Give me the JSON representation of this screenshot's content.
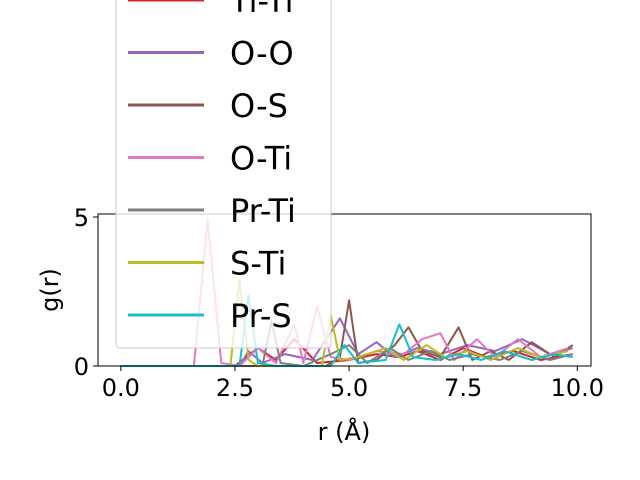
{
  "chart_data": {
    "type": "line",
    "xlabel": "r (Å)",
    "ylabel": "g(r)",
    "xlim": [
      -0.5,
      10.3
    ],
    "ylim": [
      0,
      5.1
    ],
    "x_ticks": [
      "0.0",
      "2.5",
      "5.0",
      "7.5",
      "10.0"
    ],
    "x_tick_values": [
      0,
      2.5,
      5,
      7.5,
      10
    ],
    "y_ticks": [
      "0",
      "5"
    ],
    "y_tick_values": [
      0,
      5
    ],
    "grid": false,
    "legend_placement": "upper-left (overflowing top edge)",
    "series": [
      {
        "name": "Ti-Ti",
        "color": "#d62728",
        "points": [
          [
            0,
            0
          ],
          [
            2.5,
            0
          ],
          [
            3.0,
            0.6
          ],
          [
            3.4,
            0.2
          ],
          [
            3.8,
            0.9
          ],
          [
            4.3,
            0.1
          ],
          [
            5.0,
            0.2
          ],
          [
            5.6,
            0.4
          ],
          [
            6.1,
            0.3
          ],
          [
            6.5,
            0.5
          ],
          [
            7.0,
            0.2
          ],
          [
            7.5,
            0.6
          ],
          [
            8.0,
            0.3
          ],
          [
            8.6,
            0.5
          ],
          [
            9.2,
            0.2
          ],
          [
            9.9,
            0.4
          ]
        ]
      },
      {
        "name": "O-O",
        "color": "#9467bd",
        "points": [
          [
            0,
            0
          ],
          [
            2.6,
            0
          ],
          [
            2.8,
            0.5
          ],
          [
            3.1,
            0.1
          ],
          [
            3.6,
            0.4
          ],
          [
            4.2,
            0.2
          ],
          [
            4.8,
            1.6
          ],
          [
            5.2,
            0.4
          ],
          [
            5.6,
            0.8
          ],
          [
            6.0,
            0.3
          ],
          [
            6.5,
            0.6
          ],
          [
            7.0,
            0.4
          ],
          [
            7.6,
            0.7
          ],
          [
            8.2,
            0.5
          ],
          [
            8.8,
            0.9
          ],
          [
            9.4,
            0.4
          ],
          [
            9.9,
            0.6
          ]
        ]
      },
      {
        "name": "O-S",
        "color": "#8c564b",
        "points": [
          [
            0,
            0
          ],
          [
            4.5,
            0
          ],
          [
            4.8,
            0.3
          ],
          [
            5.0,
            2.2
          ],
          [
            5.2,
            0.1
          ],
          [
            5.6,
            0.2
          ],
          [
            6.0,
            0.7
          ],
          [
            6.3,
            1.3
          ],
          [
            6.6,
            0.5
          ],
          [
            7.0,
            0.3
          ],
          [
            7.4,
            1.3
          ],
          [
            7.7,
            0.2
          ],
          [
            8.1,
            0.5
          ],
          [
            8.5,
            0.2
          ],
          [
            9.0,
            0.8
          ],
          [
            9.5,
            0.3
          ],
          [
            9.9,
            0.7
          ]
        ]
      },
      {
        "name": "O-Ti",
        "color": "#e377c2",
        "points": [
          [
            0,
            0
          ],
          [
            1.6,
            0
          ],
          [
            1.9,
            4.9
          ],
          [
            2.2,
            0.1
          ],
          [
            2.6,
            0
          ],
          [
            3.0,
            0.6
          ],
          [
            3.4,
            0.1
          ],
          [
            3.8,
            1.4
          ],
          [
            4.0,
            0.1
          ],
          [
            4.3,
            2.0
          ],
          [
            4.6,
            0.3
          ],
          [
            5.0,
            0.2
          ],
          [
            5.6,
            0.5
          ],
          [
            6.2,
            0.4
          ],
          [
            6.6,
            0.9
          ],
          [
            7.0,
            1.1
          ],
          [
            7.3,
            0.2
          ],
          [
            7.8,
            0.9
          ],
          [
            8.2,
            0.3
          ],
          [
            8.7,
            0.9
          ],
          [
            9.2,
            0.3
          ],
          [
            9.8,
            0.6
          ]
        ]
      },
      {
        "name": "Pr-Ti",
        "color": "#7f7f7f",
        "points": [
          [
            0,
            0
          ],
          [
            3.1,
            0
          ],
          [
            3.3,
            1.5
          ],
          [
            3.5,
            0.1
          ],
          [
            4.0,
            0
          ],
          [
            4.6,
            0.4
          ],
          [
            5.0,
            0.7
          ],
          [
            5.4,
            0.1
          ],
          [
            5.9,
            0.6
          ],
          [
            6.3,
            0.2
          ],
          [
            6.8,
            0.5
          ],
          [
            7.2,
            0.2
          ],
          [
            7.7,
            0.4
          ],
          [
            8.3,
            0.2
          ],
          [
            8.8,
            0.5
          ],
          [
            9.4,
            0.2
          ],
          [
            9.9,
            0.4
          ]
        ]
      },
      {
        "name": "S-Ti",
        "color": "#bcbd22",
        "points": [
          [
            0,
            0
          ],
          [
            2.4,
            0
          ],
          [
            2.6,
            2.9
          ],
          [
            2.8,
            0.2
          ],
          [
            3.0,
            0
          ],
          [
            4.4,
            0
          ],
          [
            4.6,
            1.7
          ],
          [
            4.8,
            0.2
          ],
          [
            5.2,
            0.3
          ],
          [
            5.8,
            0.6
          ],
          [
            6.2,
            0.2
          ],
          [
            6.7,
            0.7
          ],
          [
            7.1,
            0.3
          ],
          [
            7.6,
            0.5
          ],
          [
            8.1,
            0.2
          ],
          [
            8.7,
            0.6
          ],
          [
            9.2,
            0.3
          ],
          [
            9.8,
            0.5
          ]
        ]
      },
      {
        "name": "Pr-S",
        "color": "#17becf",
        "points": [
          [
            0,
            0
          ],
          [
            2.6,
            0
          ],
          [
            2.8,
            2.4
          ],
          [
            3.0,
            0.1
          ],
          [
            3.4,
            0
          ],
          [
            4.6,
            0
          ],
          [
            4.9,
            0.7
          ],
          [
            5.2,
            0.1
          ],
          [
            5.8,
            0.2
          ],
          [
            6.1,
            1.4
          ],
          [
            6.4,
            0.3
          ],
          [
            6.9,
            0.2
          ],
          [
            7.4,
            0.4
          ],
          [
            7.9,
            0.2
          ],
          [
            8.4,
            0.5
          ],
          [
            9.0,
            0.2
          ],
          [
            9.5,
            0.4
          ],
          [
            9.9,
            0.3
          ]
        ]
      }
    ]
  }
}
